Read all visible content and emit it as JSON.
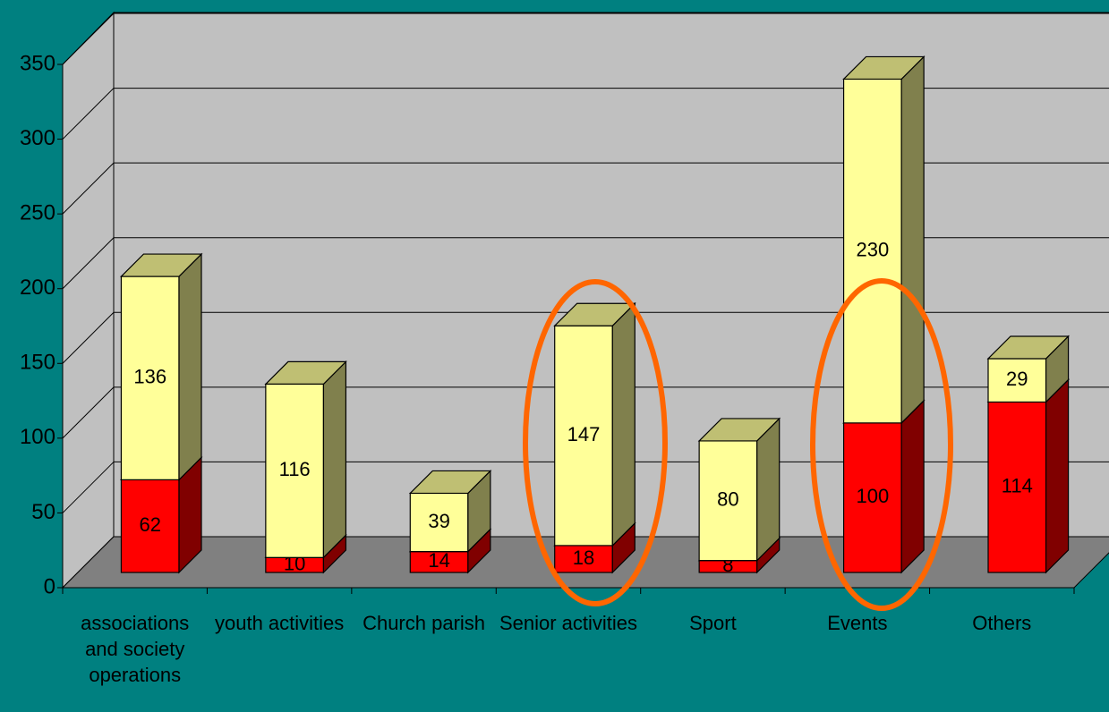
{
  "chart_data": {
    "type": "bar3d_stacked",
    "categories": [
      "associations and society operations",
      "youth activities",
      "Church parish",
      "Senior activities",
      "Sport",
      "Events",
      "Others"
    ],
    "series": [
      {
        "color": "#ff0000",
        "values": [
          62,
          10,
          14,
          18,
          8,
          100,
          114
        ]
      },
      {
        "color": "#ffff99",
        "values": [
          136,
          116,
          39,
          147,
          80,
          230,
          29
        ]
      }
    ],
    "ylim": [
      0,
      350
    ],
    "yticks": [
      0,
      50,
      100,
      150,
      200,
      250,
      300,
      350
    ],
    "grid": true
  }
}
